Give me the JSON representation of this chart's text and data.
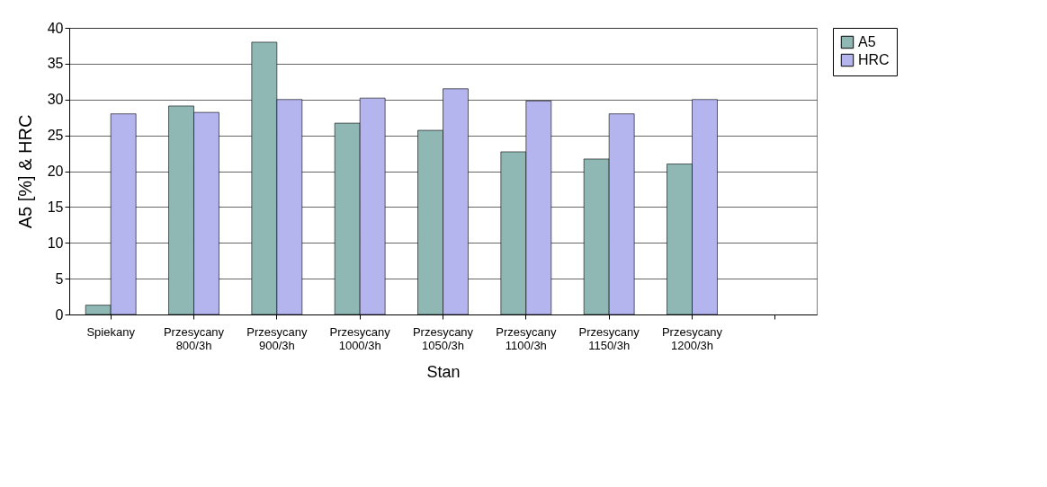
{
  "chart_data": {
    "type": "bar",
    "xlabel": "Stan",
    "ylabel": "A5 [%] & HRC",
    "categories": [
      "Spiekany",
      "Przesycany 800/3h",
      "Przesycany 900/3h",
      "Przesycany 1000/3h",
      "Przesycany 1050/3h",
      "Przesycany 1100/3h",
      "Przesycany 1150/3h",
      "Przesycany 1200/3h",
      null
    ],
    "series": [
      {
        "name": "A5",
        "color": "#8fb8b5",
        "values": [
          1.3,
          29.1,
          38,
          26.7,
          25.7,
          22.7,
          21.7,
          21,
          null
        ]
      },
      {
        "name": "HRC",
        "color": "#b4b4ee",
        "values": [
          28,
          28.2,
          30,
          30.2,
          31.5,
          29.8,
          28,
          30,
          null
        ]
      }
    ],
    "ylim": [
      0,
      40
    ],
    "yticks": [
      0,
      5,
      10,
      15,
      20,
      25,
      30,
      35,
      40
    ],
    "grid": "y",
    "legend": "right"
  }
}
